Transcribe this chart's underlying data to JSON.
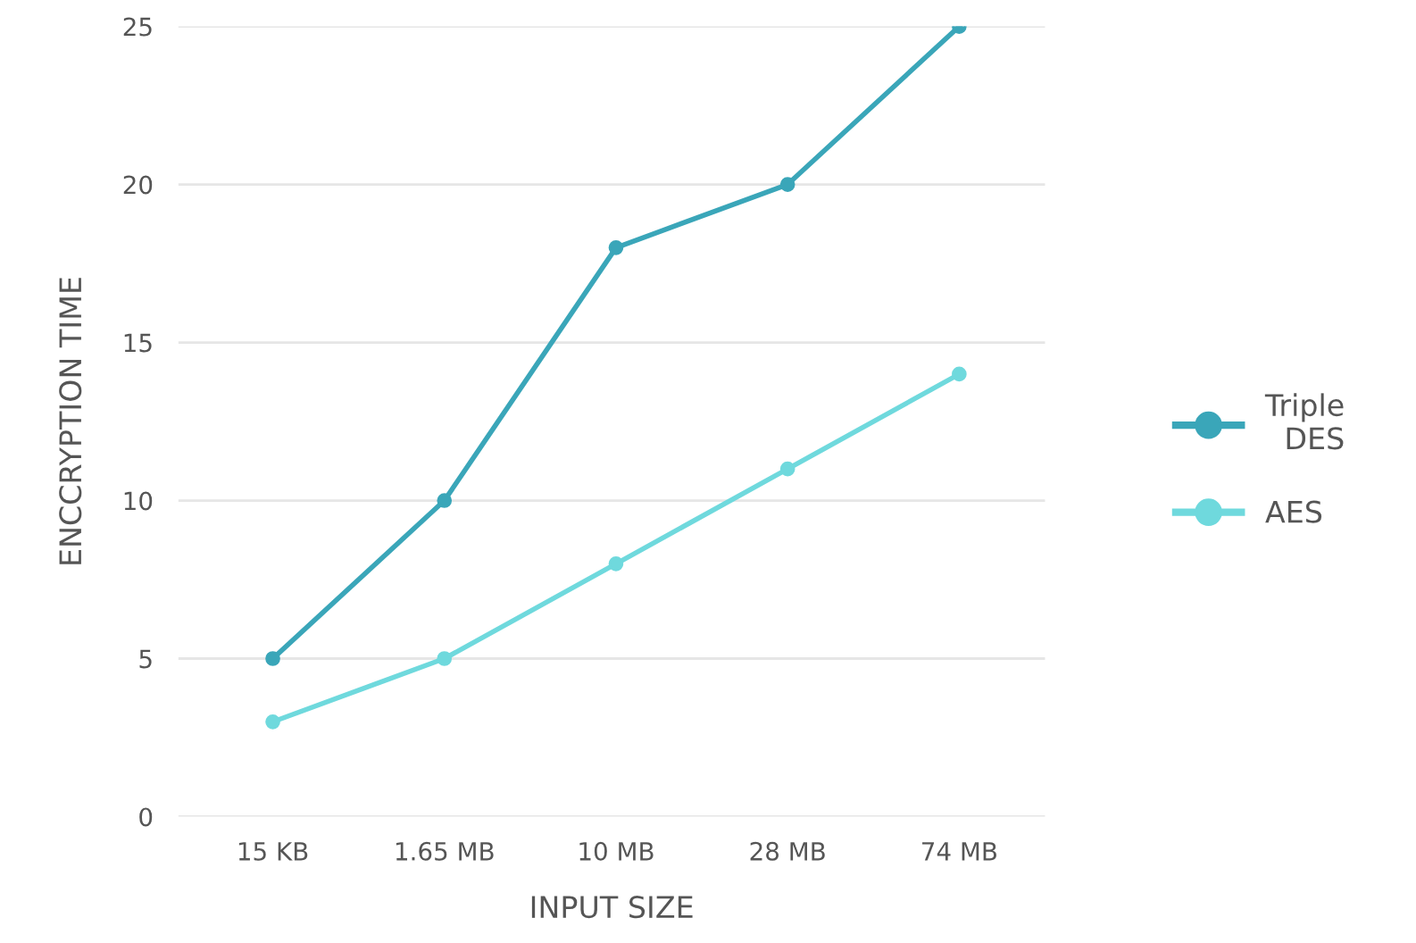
{
  "chart_data": {
    "type": "line",
    "xlabel": "INPUT SIZE",
    "ylabel": "ENCCRYPTION TIME",
    "categories": [
      "15 KB",
      "1.65 MB",
      "10 MB",
      "28 MB",
      "74 MB"
    ],
    "series": [
      {
        "name": "Triple DES",
        "color": "#3aa6b9",
        "values": [
          5,
          10,
          18,
          20,
          25
        ]
      },
      {
        "name": "AES",
        "color": "#6fd9dd",
        "values": [
          3,
          5,
          8,
          11,
          14
        ]
      }
    ],
    "ylim": [
      0,
      25
    ],
    "yticks": [
      0,
      5,
      10,
      15,
      20,
      25
    ],
    "grid": "y",
    "legend": "right",
    "marker": "circle",
    "line_style": "solid"
  }
}
